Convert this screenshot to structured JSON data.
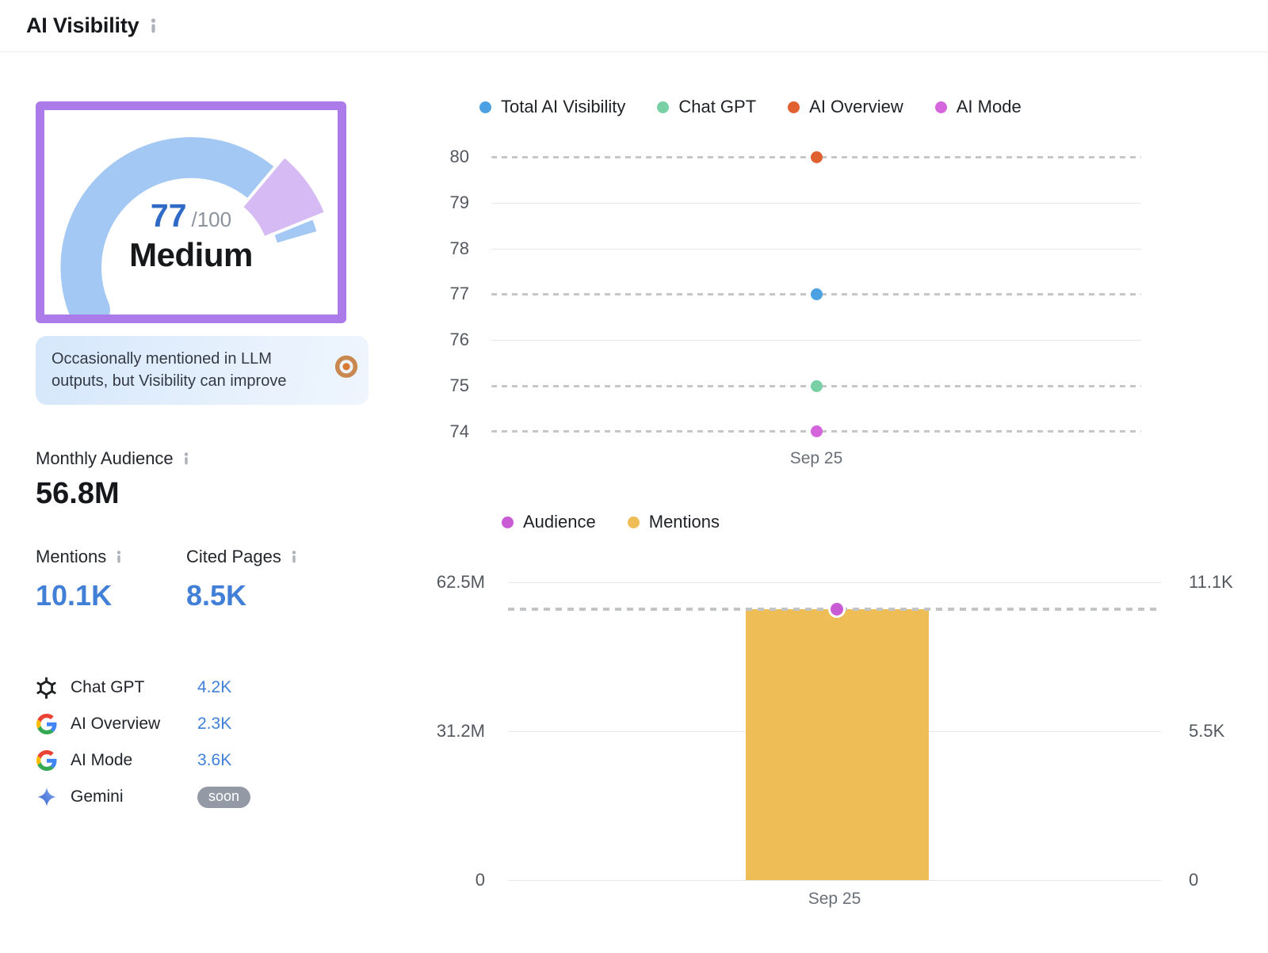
{
  "header": {
    "title": "AI Visibility"
  },
  "gauge": {
    "score": "77",
    "score_max": "/100",
    "level": "Medium",
    "note": "Occasionally mentioned in LLM outputs, but Visibility can improve",
    "frame_color": "#ab7ce9",
    "arc_color": "#a3c8f4",
    "remainder_color": "#d6baf4"
  },
  "stats": {
    "monthly_audience_label": "Monthly Audience",
    "monthly_audience_value": "56.8M",
    "mentions_label": "Mentions",
    "mentions_value": "10.1K",
    "cited_pages_label": "Cited Pages",
    "cited_pages_value": "8.5K",
    "platforms": [
      {
        "name": "Chat GPT",
        "value": "4.2K",
        "icon": "openai-icon"
      },
      {
        "name": "AI Overview",
        "value": "2.3K",
        "icon": "google-icon"
      },
      {
        "name": "AI Mode",
        "value": "3.6K",
        "icon": "google-icon"
      },
      {
        "name": "Gemini",
        "badge": "soon",
        "icon": "gemini-icon"
      }
    ]
  },
  "chart_data": [
    {
      "type": "scatter",
      "title": "AI Visibility score by platform over time",
      "x": [
        "Sep 25"
      ],
      "yticks": [
        80,
        79,
        78,
        77,
        76,
        75,
        74
      ],
      "ylim": [
        74,
        80
      ],
      "grid": true,
      "legend_position": "top",
      "series": [
        {
          "name": "Total AI Visibility",
          "color": "#4ba1e2",
          "values": [
            77
          ]
        },
        {
          "name": "Chat GPT",
          "color": "#79d0a4",
          "values": [
            75
          ]
        },
        {
          "name": "AI Overview",
          "color": "#e0602f",
          "values": [
            80
          ]
        },
        {
          "name": "AI Mode",
          "color": "#d565dc",
          "values": [
            74
          ]
        }
      ]
    },
    {
      "type": "combo",
      "title": "Audience and Mentions over time",
      "x": [
        "Sep 25"
      ],
      "legend_position": "top",
      "left_axis": {
        "ticks": [
          "62.5M",
          "31.2M",
          "0"
        ],
        "max": 62500000
      },
      "right_axis": {
        "ticks": [
          "11.1K",
          "5.5K",
          "0"
        ],
        "max": 11100
      },
      "series": [
        {
          "name": "Audience",
          "type": "scatter",
          "axis": "left",
          "color": "#c95bd4",
          "values": [
            56800000
          ],
          "label": "56.8M"
        },
        {
          "name": "Mentions",
          "type": "bar",
          "axis": "right",
          "color": "#efbd55",
          "values": [
            10100
          ],
          "label": "10.1K"
        }
      ]
    }
  ]
}
